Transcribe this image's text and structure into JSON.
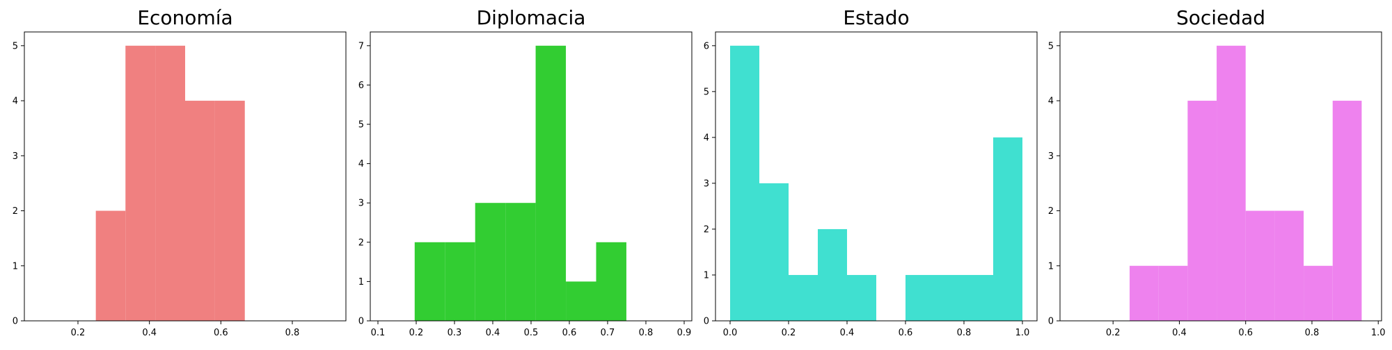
{
  "chart_data": [
    {
      "type": "bar",
      "title": "Economía",
      "color": "#f08080",
      "bins": [
        [
          0.25,
          0.333
        ],
        [
          0.333,
          0.417
        ],
        [
          0.417,
          0.5
        ],
        [
          0.5,
          0.583
        ],
        [
          0.583,
          0.667
        ]
      ],
      "values": [
        2,
        5,
        5,
        4,
        4
      ],
      "xlim": [
        0.05,
        0.95
      ],
      "ylim": [
        0,
        5.25
      ],
      "xticks": [
        0.2,
        0.4,
        0.6,
        0.8
      ],
      "xtick_labels": [
        "0.2",
        "0.4",
        "0.6",
        "0.8"
      ],
      "yticks": [
        0,
        1,
        2,
        3,
        4,
        5
      ],
      "ytick_labels": [
        "0",
        "1",
        "2",
        "3",
        "4",
        "5"
      ],
      "grid": false
    },
    {
      "type": "bar",
      "title": "Diplomacia",
      "color": "#32cd32",
      "bins": [
        [
          0.196,
          0.275
        ],
        [
          0.275,
          0.354
        ],
        [
          0.354,
          0.433
        ],
        [
          0.433,
          0.512
        ],
        [
          0.512,
          0.591
        ],
        [
          0.591,
          0.67
        ],
        [
          0.67,
          0.749
        ]
      ],
      "values": [
        2,
        2,
        3,
        3,
        7,
        1,
        2
      ],
      "xlim": [
        0.08,
        0.92
      ],
      "ylim": [
        0,
        7.35
      ],
      "xticks": [
        0.1,
        0.2,
        0.3,
        0.4,
        0.5,
        0.6,
        0.7,
        0.8,
        0.9
      ],
      "xtick_labels": [
        "0.1",
        "0.2",
        "0.3",
        "0.4",
        "0.5",
        "0.6",
        "0.7",
        "0.8",
        "0.9"
      ],
      "yticks": [
        0,
        1,
        2,
        3,
        4,
        5,
        6,
        7
      ],
      "ytick_labels": [
        "0",
        "1",
        "2",
        "3",
        "4",
        "5",
        "6",
        "7"
      ],
      "grid": false
    },
    {
      "type": "bar",
      "title": "Estado",
      "color": "#40e0d0",
      "bins": [
        [
          0.0,
          0.1
        ],
        [
          0.1,
          0.2
        ],
        [
          0.2,
          0.3
        ],
        [
          0.3,
          0.4
        ],
        [
          0.4,
          0.5
        ],
        [
          0.5,
          0.6
        ],
        [
          0.6,
          0.7
        ],
        [
          0.7,
          0.8
        ],
        [
          0.8,
          0.9
        ],
        [
          0.9,
          1.0
        ]
      ],
      "values": [
        6,
        3,
        1,
        2,
        1,
        0,
        1,
        1,
        1,
        4
      ],
      "xlim": [
        -0.05,
        1.05
      ],
      "ylim": [
        0,
        6.3
      ],
      "xticks": [
        0.0,
        0.2,
        0.4,
        0.6,
        0.8,
        1.0
      ],
      "xtick_labels": [
        "0.0",
        "0.2",
        "0.4",
        "0.6",
        "0.8",
        "1.0"
      ],
      "yticks": [
        0,
        1,
        2,
        3,
        4,
        5,
        6
      ],
      "ytick_labels": [
        "0",
        "1",
        "2",
        "3",
        "4",
        "5",
        "6"
      ],
      "grid": false
    },
    {
      "type": "bar",
      "title": "Sociedad",
      "color": "#ee82ee",
      "bins": [
        [
          0.25,
          0.3375
        ],
        [
          0.3375,
          0.425
        ],
        [
          0.425,
          0.5125
        ],
        [
          0.5125,
          0.6
        ],
        [
          0.6,
          0.6875
        ],
        [
          0.6875,
          0.775
        ],
        [
          0.775,
          0.8625
        ],
        [
          0.8625,
          0.95
        ]
      ],
      "values": [
        1,
        1,
        4,
        5,
        2,
        2,
        1,
        4
      ],
      "xlim": [
        0.04,
        1.01
      ],
      "ylim": [
        0,
        5.25
      ],
      "xticks": [
        0.2,
        0.4,
        0.6,
        0.8,
        1.0
      ],
      "xtick_labels": [
        "0.2",
        "0.4",
        "0.6",
        "0.8",
        "1.0"
      ],
      "yticks": [
        0,
        1,
        2,
        3,
        4,
        5
      ],
      "ytick_labels": [
        "0",
        "1",
        "2",
        "3",
        "4",
        "5"
      ],
      "grid": false
    }
  ]
}
